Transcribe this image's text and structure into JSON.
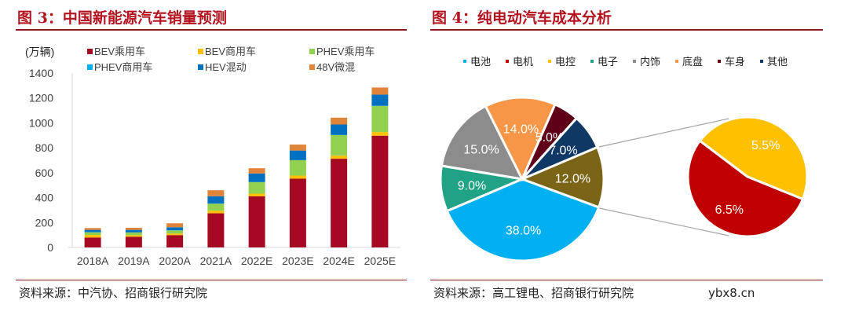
{
  "left": {
    "title": "图 3：中国新能源汽车销量预测",
    "source": "资料来源：中汽协、招商银行研究院"
  },
  "right": {
    "title": "图 4：纯电动汽车成本分析",
    "source": "资料来源：高工锂电、招商银行研究院"
  },
  "watermark": "ybx8.cn",
  "chart_data": [
    {
      "type": "bar",
      "stacked": true,
      "ylabel": "(万辆)",
      "ylim": [
        0,
        1400
      ],
      "yticks": [
        "0",
        "200",
        "400",
        "600",
        "800",
        "1000",
        "1200",
        "1400"
      ],
      "categories": [
        "2018A",
        "2019A",
        "2020A",
        "2021A",
        "2022E",
        "2023E",
        "2024E",
        "2025E"
      ],
      "legend": "top",
      "series": [
        {
          "name": "BEV乘用车",
          "color": "#a50a22",
          "values": [
            80,
            86,
            99,
            274,
            411,
            552,
            712,
            897
          ]
        },
        {
          "name": "BEV商用车",
          "color": "#ffc000",
          "values": [
            20,
            13,
            13,
            21,
            21,
            25,
            27,
            29
          ]
        },
        {
          "name": "PHEV乘用车",
          "color": "#92d050",
          "values": [
            22,
            21,
            25,
            56,
            92,
            123,
            163,
            210
          ]
        },
        {
          "name": "PHEV商用车",
          "color": "#00b0f0",
          "values": [
            1,
            1,
            1,
            1,
            1,
            1,
            1,
            1
          ]
        },
        {
          "name": "HEV混动",
          "color": "#0070c0",
          "values": [
            18,
            20,
            24,
            59,
            69,
            77,
            84,
            90
          ]
        },
        {
          "name": "48V微混",
          "color": "#e0843a",
          "values": [
            15,
            17,
            32,
            48,
            42,
            48,
            55,
            57
          ]
        }
      ]
    },
    {
      "type": "pie",
      "legend": "top",
      "legend_items": [
        {
          "name": "电池",
          "color": "#00b0f0"
        },
        {
          "name": "电机",
          "color": "#c00000"
        },
        {
          "name": "电控",
          "color": "#ffc000"
        },
        {
          "name": "电子",
          "color": "#20a384"
        },
        {
          "name": "内饰",
          "color": "#8c8c8c"
        },
        {
          "name": "底盘",
          "color": "#f79646"
        },
        {
          "name": "车身",
          "color": "#600018"
        },
        {
          "name": "其他",
          "color": "#0f3864"
        }
      ],
      "slices": [
        {
          "label": "12.0%",
          "value": 12,
          "color": "#7a6416"
        },
        {
          "label": "38.0%",
          "value": 38,
          "color": "#00b0f0"
        },
        {
          "label": "9.0%",
          "value": 9,
          "color": "#20a384"
        },
        {
          "label": "15.0%",
          "value": 15,
          "color": "#8c8c8c"
        },
        {
          "label": "14.0%",
          "value": 14,
          "color": "#f79646"
        },
        {
          "label": "5.0%",
          "value": 5,
          "color": "#600018"
        },
        {
          "label": "7.0%",
          "value": 7,
          "color": "#0f3864"
        }
      ],
      "sub_pie": [
        {
          "label": "5.5%",
          "value": 5.5,
          "color": "#ffc000"
        },
        {
          "label": "6.5%",
          "value": 6.5,
          "color": "#c00000"
        }
      ]
    }
  ]
}
